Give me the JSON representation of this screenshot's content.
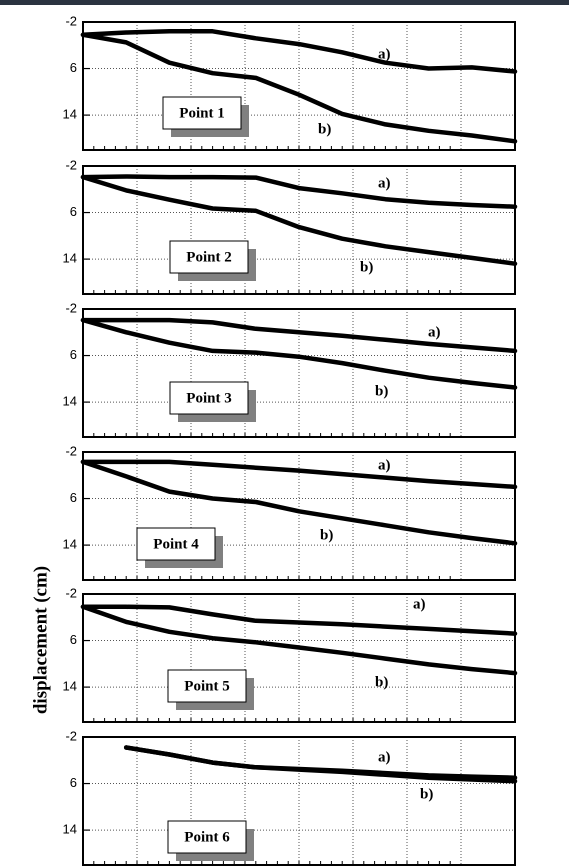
{
  "ylabel": "displacement (cm)",
  "chart_data": [
    {
      "type": "line",
      "title": "Point 1",
      "x": [
        0,
        10,
        20,
        30,
        40,
        50,
        60,
        70,
        80,
        90,
        100
      ],
      "xlim": [
        0,
        100
      ],
      "ylim": [
        -2,
        20
      ],
      "y_inverted": true,
      "yticks": [
        -2,
        6,
        14
      ],
      "grid": true,
      "series": [
        {
          "name": "a)",
          "color": "#000000",
          "values": [
            0.2,
            -0.2,
            -0.4,
            -0.4,
            0.8,
            1.8,
            3.2,
            5,
            6,
            5.8,
            6.5
          ]
        },
        {
          "name": "b)",
          "color": "#000000",
          "values": [
            0.2,
            1.5,
            5,
            6.8,
            7.6,
            10.5,
            13.8,
            15.6,
            16.7,
            17.5,
            18.5
          ]
        }
      ]
    },
    {
      "type": "line",
      "title": "Point 2",
      "x": [
        0,
        10,
        20,
        30,
        40,
        50,
        60,
        70,
        80,
        90,
        100
      ],
      "xlim": [
        0,
        100
      ],
      "ylim": [
        -2,
        20
      ],
      "y_inverted": true,
      "yticks": [
        -2,
        6,
        14
      ],
      "grid": true,
      "series": [
        {
          "name": "a)",
          "color": "#000000",
          "values": [
            -0.1,
            -0.2,
            -0.1,
            -0.1,
            0,
            1.8,
            2.7,
            3.7,
            4.3,
            4.7,
            5
          ]
        },
        {
          "name": "b)",
          "color": "#000000",
          "values": [
            -0.1,
            2.2,
            3.8,
            5.3,
            5.7,
            8.5,
            10.5,
            11.8,
            12.8,
            13.8,
            14.8
          ]
        }
      ]
    },
    {
      "type": "line",
      "title": "Point 3",
      "x": [
        0,
        10,
        20,
        30,
        40,
        50,
        60,
        70,
        80,
        90,
        100
      ],
      "xlim": [
        0,
        100
      ],
      "ylim": [
        -2,
        20
      ],
      "y_inverted": true,
      "yticks": [
        -2,
        6,
        14
      ],
      "grid": true,
      "series": [
        {
          "name": "a)",
          "color": "#000000",
          "values": [
            -0.1,
            -0.1,
            -0.1,
            0.3,
            1.4,
            2,
            2.6,
            3.3,
            4,
            4.6,
            5.2
          ]
        },
        {
          "name": "b)",
          "color": "#000000",
          "values": [
            -0.1,
            2,
            3.8,
            5.2,
            5.5,
            6.2,
            7.3,
            8.6,
            9.8,
            10.7,
            11.5
          ]
        }
      ]
    },
    {
      "type": "line",
      "title": "Point 4",
      "x": [
        0,
        10,
        20,
        30,
        40,
        50,
        60,
        70,
        80,
        90,
        100
      ],
      "xlim": [
        0,
        100
      ],
      "ylim": [
        -2,
        20
      ],
      "y_inverted": true,
      "yticks": [
        -2,
        6,
        14
      ],
      "grid": true,
      "series": [
        {
          "name": "a)",
          "color": "#000000",
          "values": [
            -0.3,
            -0.3,
            -0.3,
            0.2,
            0.7,
            1.2,
            1.8,
            2.4,
            3,
            3.5,
            4
          ]
        },
        {
          "name": "b)",
          "color": "#000000",
          "values": [
            -0.3,
            2.2,
            4.8,
            6,
            6.6,
            8.2,
            9.4,
            10.6,
            11.8,
            12.8,
            13.7
          ]
        }
      ]
    },
    {
      "type": "line",
      "title": "Point 5",
      "x": [
        0,
        10,
        20,
        30,
        40,
        50,
        60,
        70,
        80,
        90,
        100
      ],
      "xlim": [
        0,
        100
      ],
      "ylim": [
        -2,
        20
      ],
      "y_inverted": true,
      "yticks": [
        -2,
        6,
        14
      ],
      "grid": true,
      "series": [
        {
          "name": "a)",
          "color": "#000000",
          "values": [
            0.2,
            0.2,
            0.3,
            1.5,
            2.6,
            2.9,
            3.2,
            3.6,
            4,
            4.4,
            4.8
          ]
        },
        {
          "name": "b)",
          "color": "#000000",
          "values": [
            0.2,
            2.8,
            4.5,
            5.6,
            6.3,
            7.2,
            8.1,
            9.1,
            10.1,
            10.9,
            11.6
          ]
        }
      ]
    },
    {
      "type": "line",
      "title": "Point 6",
      "x": [
        0,
        10,
        20,
        30,
        40,
        50,
        60,
        70,
        80,
        90,
        100
      ],
      "xlim": [
        0,
        100
      ],
      "ylim": [
        -2,
        20
      ],
      "y_inverted": true,
      "yticks": [
        -2,
        6,
        14
      ],
      "grid": true,
      "series": [
        {
          "name": "a)",
          "color": "#000000",
          "values": [
            null,
            -0.2,
            1,
            2.4,
            3.2,
            3.5,
            3.8,
            4.2,
            4.6,
            4.8,
            5
          ]
        },
        {
          "name": "b)",
          "color": "#000000",
          "values": [
            null,
            -0.2,
            1,
            2.4,
            3.2,
            3.6,
            4,
            4.5,
            5,
            5.3,
            5.6
          ]
        }
      ]
    }
  ]
}
